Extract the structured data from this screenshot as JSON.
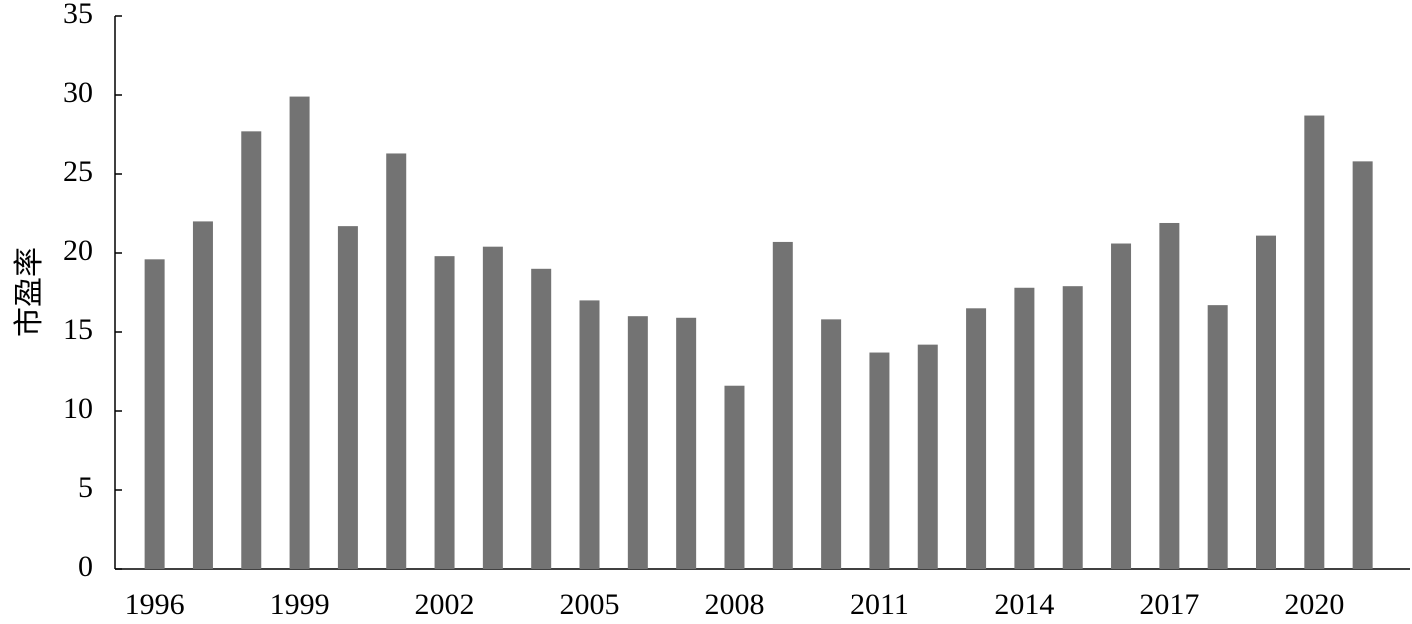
{
  "chart_data": {
    "type": "bar",
    "y_label": "市盈率",
    "categories": [
      "1996",
      null,
      null,
      "1999",
      null,
      null,
      "2002",
      null,
      null,
      "2005",
      null,
      null,
      "2008",
      null,
      null,
      "2011",
      null,
      null,
      "2014",
      null,
      null,
      "2017",
      null,
      null,
      "2020",
      null
    ],
    "values": [
      19.6,
      22.0,
      27.7,
      29.9,
      21.7,
      26.3,
      19.8,
      20.4,
      19.0,
      17.0,
      16.0,
      15.9,
      11.6,
      20.7,
      15.8,
      13.7,
      14.2,
      16.5,
      17.8,
      17.9,
      20.6,
      21.9,
      16.7,
      21.1,
      28.7,
      25.8
    ],
    "color": "#737373",
    "ylim": [
      0,
      35
    ],
    "yticks": [
      0,
      5,
      10,
      15,
      20,
      25,
      30,
      35
    ],
    "grid": false
  }
}
